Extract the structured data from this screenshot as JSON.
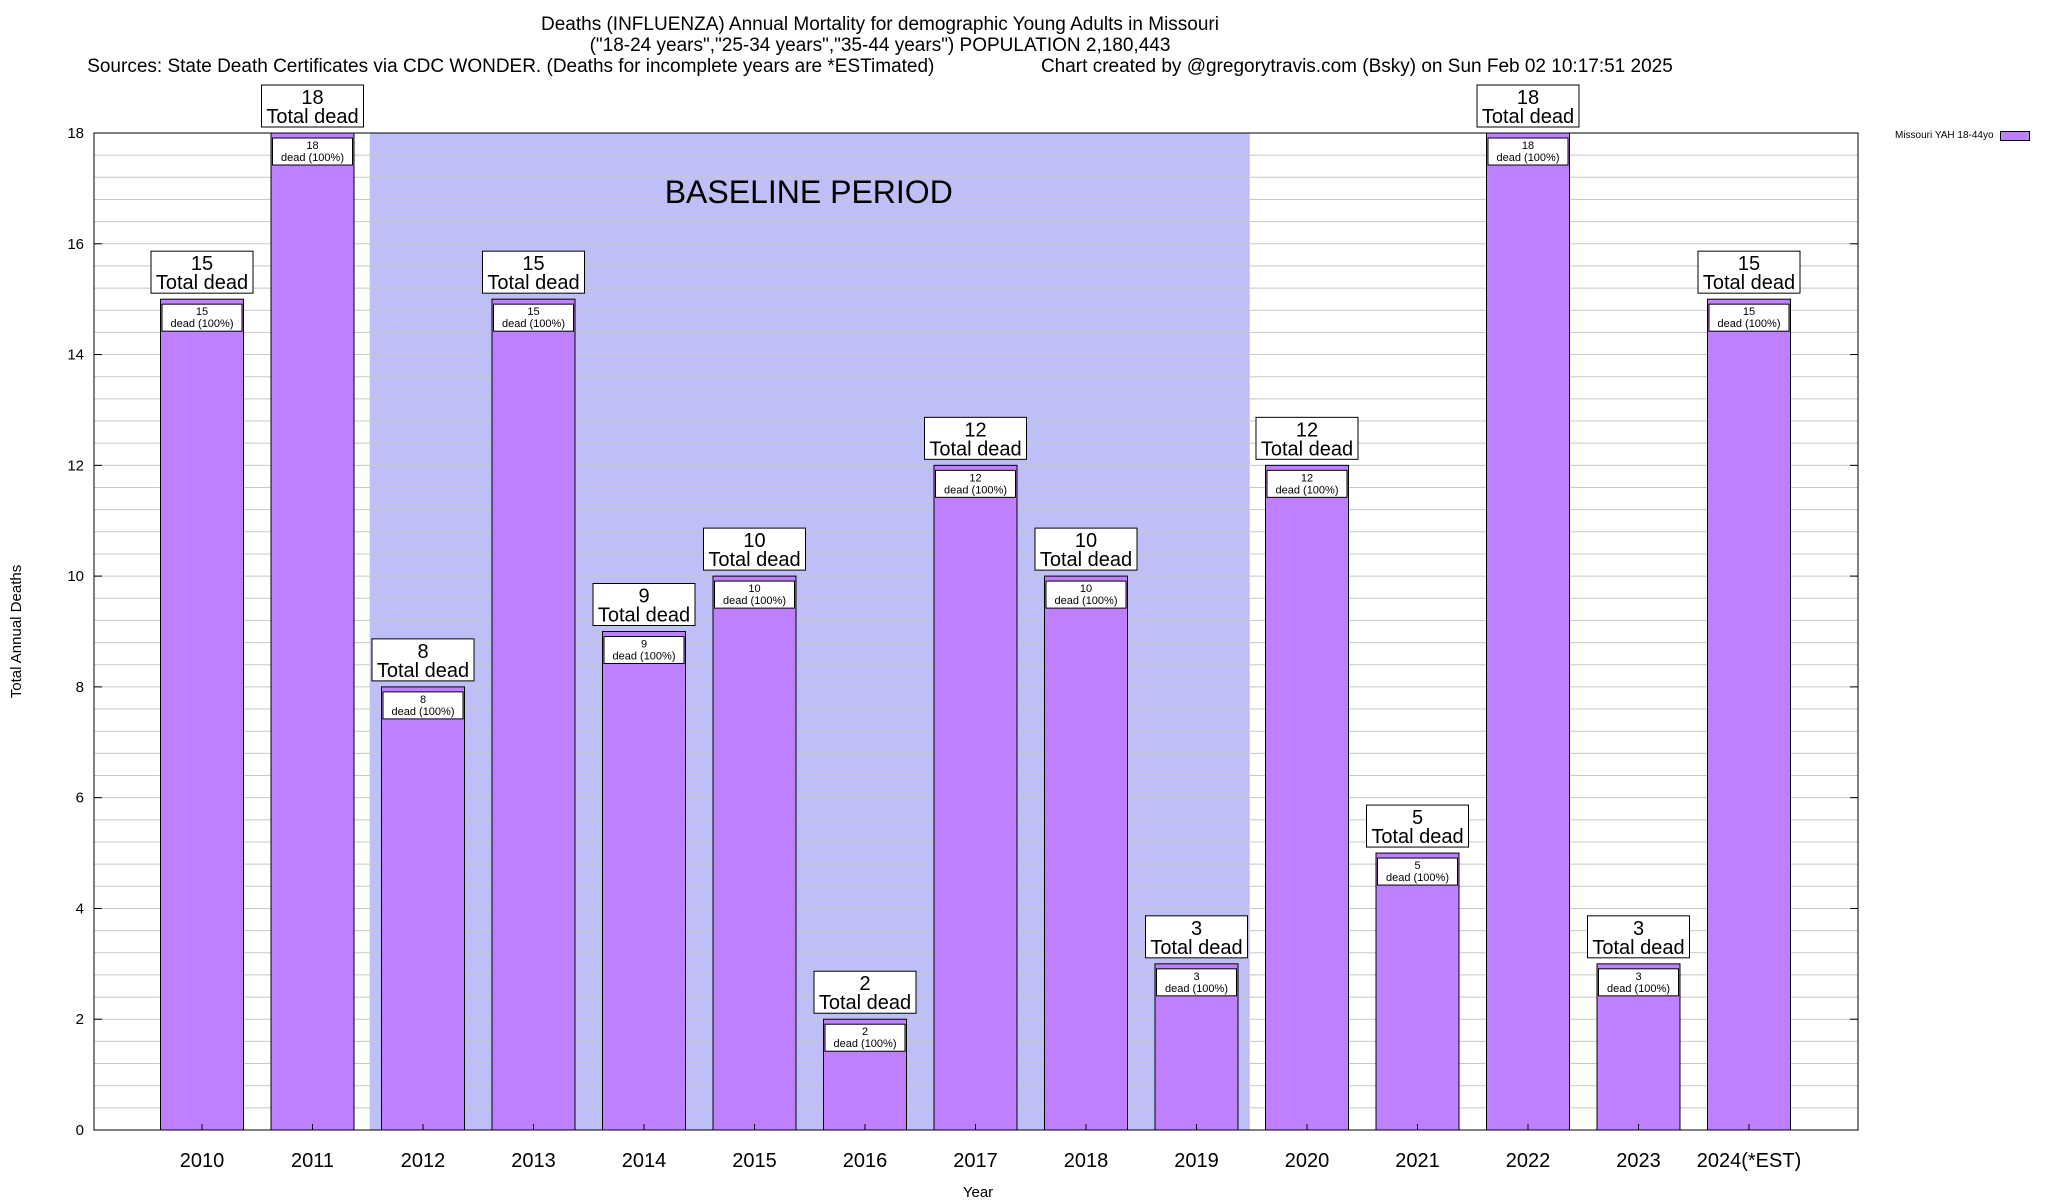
{
  "title_line1": "Deaths (INFLUENZA) Annual Mortality for demographic Young Adults in Missouri",
  "title_line2": "(\"18-24 years\",\"25-34 years\",\"35-44 years\") POPULATION 2,180,443",
  "sources": "Sources: State Death Certificates via CDC WONDER. (Deaths for incomplete years are *ESTimated)",
  "credit": "Chart created by @gregorytravis.com (Bsky) on Sun Feb 02 10:17:51 2025",
  "legend": {
    "label": "Missouri YAH 18-44yo",
    "color": "#bf80ff"
  },
  "colors": {
    "bar": "#bf80ff",
    "baseline_shade": "#bfbff7",
    "grid": "#c8c8c8"
  },
  "chart_data": {
    "type": "bar",
    "title": "Deaths (INFLUENZA) Annual Mortality for demographic Young Adults in Missouri",
    "xlabel": "Year",
    "ylabel": "Total Annual Deaths",
    "ylim": [
      0,
      18
    ],
    "yticks": [
      0,
      2,
      4,
      6,
      8,
      10,
      12,
      14,
      16,
      18
    ],
    "grid": true,
    "categories": [
      "2010",
      "2011",
      "2012",
      "2013",
      "2014",
      "2015",
      "2016",
      "2017",
      "2018",
      "2019",
      "2020",
      "2021",
      "2022",
      "2023",
      "2024(*EST)"
    ],
    "series": [
      {
        "name": "Missouri YAH 18-44yo",
        "values": [
          15,
          18,
          8,
          15,
          9,
          10,
          2,
          12,
          10,
          3,
          12,
          5,
          18,
          3,
          15
        ]
      }
    ],
    "top_label_suffix": "Total dead",
    "inner_label_suffix": "dead (100%)",
    "baseline": {
      "label": "BASELINE PERIOD",
      "from": "2012",
      "to": "2019"
    },
    "legend_position": "top-right"
  }
}
